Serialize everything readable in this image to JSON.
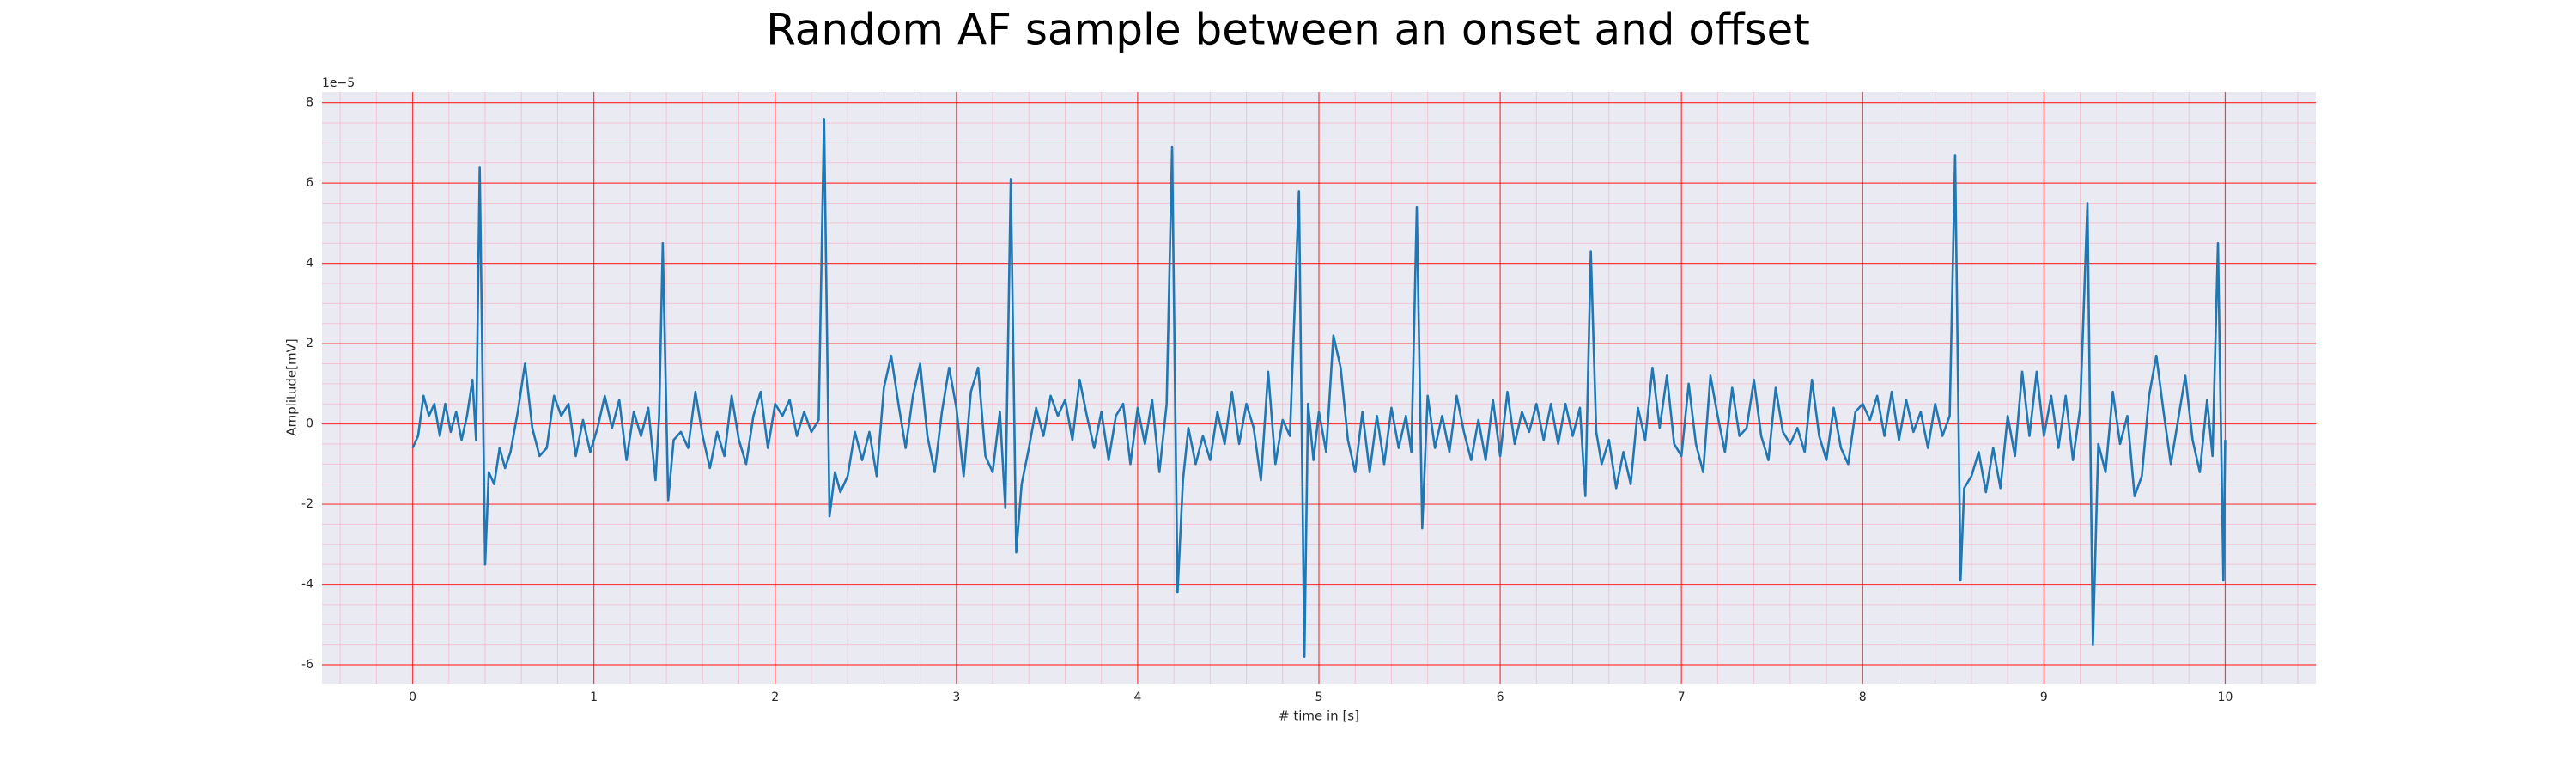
{
  "chart_data": {
    "type": "line",
    "title": "Random AF sample between an onset and offset",
    "xlabel": "# time in [s]",
    "ylabel": "Amplitude[mV]",
    "y_offset_label": "1e−5",
    "color": "#1f77b4",
    "x": [
      0.0,
      0.03,
      0.06,
      0.09,
      0.12,
      0.15,
      0.18,
      0.21,
      0.24,
      0.27,
      0.3,
      0.33,
      0.35,
      0.37,
      0.4,
      0.42,
      0.45,
      0.48,
      0.51,
      0.54,
      0.58,
      0.62,
      0.66,
      0.7,
      0.74,
      0.78,
      0.82,
      0.86,
      0.9,
      0.94,
      0.98,
      1.02,
      1.06,
      1.1,
      1.14,
      1.18,
      1.22,
      1.26,
      1.3,
      1.34,
      1.36,
      1.38,
      1.41,
      1.44,
      1.48,
      1.52,
      1.56,
      1.6,
      1.64,
      1.68,
      1.72,
      1.76,
      1.8,
      1.84,
      1.88,
      1.92,
      1.96,
      2.0,
      2.04,
      2.08,
      2.12,
      2.16,
      2.2,
      2.24,
      2.27,
      2.3,
      2.33,
      2.36,
      2.4,
      2.44,
      2.48,
      2.52,
      2.56,
      2.6,
      2.64,
      2.68,
      2.72,
      2.76,
      2.8,
      2.84,
      2.88,
      2.92,
      2.96,
      3.0,
      3.04,
      3.08,
      3.12,
      3.16,
      3.2,
      3.24,
      3.27,
      3.3,
      3.33,
      3.36,
      3.4,
      3.44,
      3.48,
      3.52,
      3.56,
      3.6,
      3.64,
      3.68,
      3.72,
      3.76,
      3.8,
      3.84,
      3.88,
      3.92,
      3.96,
      4.0,
      4.04,
      4.08,
      4.12,
      4.16,
      4.19,
      4.22,
      4.25,
      4.28,
      4.32,
      4.36,
      4.4,
      4.44,
      4.48,
      4.52,
      4.56,
      4.6,
      4.64,
      4.68,
      4.72,
      4.76,
      4.8,
      4.84,
      4.89,
      4.92,
      4.94,
      4.97,
      5.0,
      5.04,
      5.08,
      5.12,
      5.16,
      5.2,
      5.24,
      5.28,
      5.32,
      5.36,
      5.4,
      5.44,
      5.48,
      5.51,
      5.54,
      5.57,
      5.6,
      5.64,
      5.68,
      5.72,
      5.76,
      5.8,
      5.84,
      5.88,
      5.92,
      5.96,
      6.0,
      6.04,
      6.08,
      6.12,
      6.16,
      6.2,
      6.24,
      6.28,
      6.32,
      6.36,
      6.4,
      6.44,
      6.47,
      6.5,
      6.53,
      6.56,
      6.6,
      6.64,
      6.68,
      6.72,
      6.76,
      6.8,
      6.84,
      6.88,
      6.92,
      6.96,
      7.0,
      7.04,
      7.08,
      7.12,
      7.16,
      7.2,
      7.24,
      7.28,
      7.32,
      7.36,
      7.4,
      7.44,
      7.48,
      7.52,
      7.56,
      7.6,
      7.64,
      7.68,
      7.72,
      7.76,
      7.8,
      7.84,
      7.88,
      7.92,
      7.96,
      8.0,
      8.04,
      8.08,
      8.12,
      8.16,
      8.2,
      8.24,
      8.28,
      8.32,
      8.36,
      8.4,
      8.44,
      8.48,
      8.51,
      8.54,
      8.56,
      8.6,
      8.64,
      8.68,
      8.72,
      8.76,
      8.8,
      8.84,
      8.88,
      8.92,
      8.96,
      9.0,
      9.04,
      9.08,
      9.12,
      9.16,
      9.2,
      9.24,
      9.27,
      9.3,
      9.34,
      9.38,
      9.42,
      9.46,
      9.5,
      9.54,
      9.58,
      9.62,
      9.66,
      9.7,
      9.74,
      9.78,
      9.82,
      9.86,
      9.9,
      9.93,
      9.96,
      9.99,
      10.0
    ],
    "values": [
      -0.6,
      -0.3,
      0.7,
      0.2,
      0.5,
      -0.3,
      0.5,
      -0.2,
      0.3,
      -0.4,
      0.2,
      1.1,
      -0.4,
      6.4,
      -3.5,
      -1.2,
      -1.5,
      -0.6,
      -1.1,
      -0.7,
      0.3,
      1.5,
      -0.1,
      -0.8,
      -0.6,
      0.7,
      0.2,
      0.5,
      -0.8,
      0.1,
      -0.7,
      -0.1,
      0.7,
      -0.1,
      0.6,
      -0.9,
      0.3,
      -0.3,
      0.4,
      -1.4,
      0.2,
      4.5,
      -1.9,
      -0.4,
      -0.2,
      -0.6,
      0.8,
      -0.3,
      -1.1,
      -0.2,
      -0.8,
      0.7,
      -0.4,
      -1.0,
      0.2,
      0.8,
      -0.6,
      0.5,
      0.2,
      0.6,
      -0.3,
      0.3,
      -0.2,
      0.1,
      7.6,
      -2.3,
      -1.2,
      -1.7,
      -1.3,
      -0.2,
      -0.9,
      -0.2,
      -1.3,
      0.9,
      1.7,
      0.5,
      -0.6,
      0.7,
      1.5,
      -0.3,
      -1.2,
      0.3,
      1.4,
      0.4,
      -1.3,
      0.8,
      1.4,
      -0.8,
      -1.2,
      0.3,
      -2.1,
      6.1,
      -3.2,
      -1.5,
      -0.6,
      0.4,
      -0.3,
      0.7,
      0.2,
      0.6,
      -0.4,
      1.1,
      0.2,
      -0.6,
      0.3,
      -0.9,
      0.2,
      0.5,
      -1.0,
      0.4,
      -0.5,
      0.6,
      -1.2,
      0.5,
      6.9,
      -4.2,
      -1.4,
      -0.1,
      -1.0,
      -0.3,
      -0.9,
      0.3,
      -0.5,
      0.8,
      -0.5,
      0.5,
      -0.1,
      -1.4,
      1.3,
      -1.0,
      0.1,
      -0.3,
      5.8,
      -5.8,
      0.5,
      -0.9,
      0.3,
      -0.7,
      2.2,
      1.4,
      -0.4,
      -1.2,
      0.3,
      -1.2,
      0.2,
      -1.0,
      0.4,
      -0.6,
      0.2,
      -0.7,
      5.4,
      -2.6,
      0.7,
      -0.6,
      0.2,
      -0.7,
      0.7,
      -0.2,
      -0.9,
      0.1,
      -0.9,
      0.6,
      -0.8,
      0.8,
      -0.5,
      0.3,
      -0.2,
      0.5,
      -0.4,
      0.5,
      -0.5,
      0.5,
      -0.3,
      0.4,
      -1.8,
      4.3,
      -0.2,
      -1.0,
      -0.4,
      -1.6,
      -0.7,
      -1.5,
      0.4,
      -0.4,
      1.4,
      -0.1,
      1.2,
      -0.5,
      -0.8,
      1.0,
      -0.5,
      -1.2,
      1.2,
      0.2,
      -0.7,
      0.9,
      -0.3,
      -0.1,
      1.1,
      -0.3,
      -0.9,
      0.9,
      -0.2,
      -0.5,
      -0.1,
      -0.7,
      1.1,
      -0.3,
      -0.9,
      0.4,
      -0.6,
      -1.0,
      0.3,
      0.5,
      0.1,
      0.7,
      -0.3,
      0.8,
      -0.4,
      0.6,
      -0.2,
      0.3,
      -0.6,
      0.5,
      -0.3,
      0.2,
      6.7,
      -3.9,
      -1.6,
      -1.3,
      -0.7,
      -1.7,
      -0.6,
      -1.6,
      0.2,
      -0.8,
      1.3,
      -0.3,
      1.3,
      -0.3,
      0.7,
      -0.6,
      0.7,
      -0.9,
      0.4,
      5.5,
      -5.5,
      -0.5,
      -1.2,
      0.8,
      -0.5,
      0.2,
      -1.8,
      -1.3,
      0.7,
      1.7,
      0.3,
      -1.0,
      0.1,
      1.2,
      -0.4,
      -1.2,
      0.6,
      -0.8,
      4.5,
      -3.9,
      -0.4
    ],
    "xlim": [
      -0.5,
      10.5
    ],
    "ylim": [
      -6.47,
      8.27
    ],
    "xticks": [
      0,
      1,
      2,
      3,
      4,
      5,
      6,
      7,
      8,
      9,
      10
    ],
    "yticks": [
      -6,
      -4,
      -2,
      0,
      2,
      4,
      6,
      8
    ],
    "minor_xticks": [
      -0.4,
      -0.2,
      0,
      0.2,
      0.4,
      0.6,
      0.8,
      1,
      1.2,
      1.4,
      1.6,
      1.8,
      2,
      2.2,
      2.4,
      2.6,
      2.8,
      3,
      3.2,
      3.4,
      3.6,
      3.8,
      4,
      4.2,
      4.4,
      4.6,
      4.8,
      5,
      5.2,
      5.4,
      5.6,
      5.8,
      6,
      6.2,
      6.4,
      6.6,
      6.8,
      7,
      7.2,
      7.4,
      7.6,
      7.8,
      8,
      8.2,
      8.4,
      8.6,
      8.8,
      9,
      9.2,
      9.4,
      9.6,
      9.8,
      10,
      10.2,
      10.4
    ],
    "minor_yticks": [
      -6,
      -5.5,
      -5,
      -4.5,
      -4,
      -3.5,
      -3,
      -2.5,
      -2,
      -1.5,
      -1,
      -0.5,
      0,
      0.5,
      1,
      1.5,
      2,
      2.5,
      3,
      3.5,
      4,
      4.5,
      5,
      5.5,
      6,
      6.5,
      7,
      7.5,
      8
    ],
    "grid": true,
    "minor_grid": true,
    "grid_color": "#ff0000",
    "minor_grid_color": "#f4b4c4",
    "background": "#eaeaf2"
  }
}
